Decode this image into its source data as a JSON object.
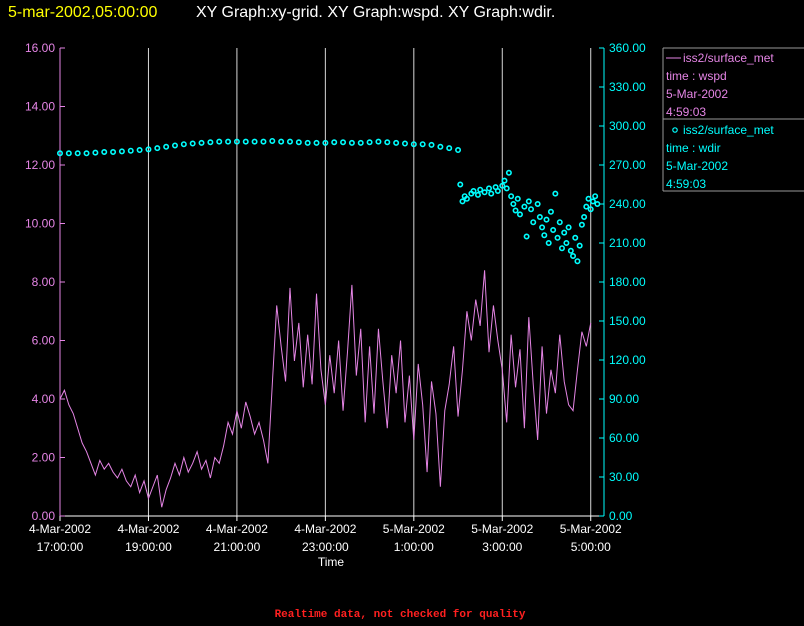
{
  "chart_data": {
    "type": "line-scatter",
    "title_time": "5-mar-2002,05:00:00",
    "title": "XY Graph:xy-grid.  XY Graph:wspd.  XY Graph:wdir.",
    "x_label": "Time",
    "footer": "Realtime data, not checked for quality",
    "xlim": [
      0,
      12.3
    ],
    "xticks": [
      {
        "value": 0,
        "label": "4-Mar-2002\n17:00:00"
      },
      {
        "value": 2,
        "label": "4-Mar-2002\n19:00:00"
      },
      {
        "value": 4,
        "label": "4-Mar-2002\n21:00:00"
      },
      {
        "value": 6,
        "label": "4-Mar-2002\n23:00:00"
      },
      {
        "value": 8,
        "label": "5-Mar-2002\n1:00:00"
      },
      {
        "value": 10,
        "label": "5-Mar-2002\n3:00:00"
      },
      {
        "value": 12,
        "label": "5-Mar-2002\n5:00:00"
      }
    ],
    "ylim": [
      0,
      16
    ],
    "yticks": [
      {
        "value": 0,
        "label": "0.00"
      },
      {
        "value": 2,
        "label": "2.00"
      },
      {
        "value": 4,
        "label": "4.00"
      },
      {
        "value": 6,
        "label": "6.00"
      },
      {
        "value": 8,
        "label": "8.00"
      },
      {
        "value": 10,
        "label": "10.00"
      },
      {
        "value": 12,
        "label": "12.00"
      },
      {
        "value": 14,
        "label": "14.00"
      },
      {
        "value": 16,
        "label": "16.00"
      }
    ],
    "y2lim": [
      0,
      360
    ],
    "y2ticks": [
      {
        "value": 0,
        "label": "0.00"
      },
      {
        "value": 30,
        "label": "30.00"
      },
      {
        "value": 60,
        "label": "60.00"
      },
      {
        "value": 90,
        "label": "90.00"
      },
      {
        "value": 120,
        "label": "120.00"
      },
      {
        "value": 150,
        "label": "150.00"
      },
      {
        "value": 180,
        "label": "180.00"
      },
      {
        "value": 210,
        "label": "210.00"
      },
      {
        "value": 240,
        "label": "240.00"
      },
      {
        "value": 270,
        "label": "270.00"
      },
      {
        "value": 300,
        "label": "300.00"
      },
      {
        "value": 330,
        "label": "330.00"
      },
      {
        "value": 360,
        "label": "360.00"
      }
    ],
    "grid": "vertical",
    "series": [
      {
        "name": "iss2/surface_met",
        "legend_text": [
          "time : wspd",
          "5-Mar-2002",
          "4:59:03"
        ],
        "color": "#e585e5",
        "axis": "y",
        "marker": "line",
        "x": [
          0,
          0.1,
          0.2,
          0.3,
          0.4,
          0.5,
          0.6,
          0.7,
          0.8,
          0.9,
          1,
          1.1,
          1.2,
          1.3,
          1.4,
          1.5,
          1.6,
          1.7,
          1.8,
          1.9,
          2,
          2.1,
          2.2,
          2.3,
          2.4,
          2.5,
          2.6,
          2.7,
          2.8,
          2.9,
          3,
          3.1,
          3.2,
          3.3,
          3.4,
          3.5,
          3.6,
          3.7,
          3.8,
          3.9,
          4,
          4.1,
          4.2,
          4.3,
          4.4,
          4.5,
          4.6,
          4.7,
          4.8,
          4.9,
          5,
          5.1,
          5.2,
          5.3,
          5.4,
          5.5,
          5.6,
          5.7,
          5.8,
          5.9,
          6,
          6.1,
          6.2,
          6.3,
          6.4,
          6.5,
          6.6,
          6.7,
          6.8,
          6.9,
          7,
          7.1,
          7.2,
          7.3,
          7.4,
          7.5,
          7.6,
          7.7,
          7.8,
          7.9,
          8,
          8.1,
          8.2,
          8.3,
          8.4,
          8.5,
          8.6,
          8.7,
          8.8,
          8.9,
          9,
          9.1,
          9.2,
          9.3,
          9.4,
          9.5,
          9.6,
          9.7,
          9.8,
          9.9,
          10,
          10.1,
          10.2,
          10.3,
          10.4,
          10.5,
          10.6,
          10.7,
          10.8,
          10.9,
          11,
          11.1,
          11.2,
          11.3,
          11.4,
          11.5,
          11.6,
          11.7,
          11.8,
          11.9,
          12
        ],
        "values": [
          4.0,
          4.3,
          3.8,
          3.5,
          3.0,
          2.5,
          2.2,
          1.8,
          1.4,
          1.9,
          1.6,
          1.8,
          1.5,
          1.3,
          1.6,
          1.2,
          1.0,
          1.4,
          0.8,
          1.2,
          0.6,
          1.0,
          1.4,
          0.3,
          0.9,
          1.3,
          1.8,
          1.4,
          2.0,
          1.5,
          1.8,
          2.2,
          1.6,
          1.9,
          1.3,
          2.0,
          1.8,
          2.4,
          3.2,
          2.8,
          3.6,
          3.0,
          3.9,
          3.4,
          2.8,
          3.2,
          2.6,
          1.8,
          4.5,
          7.2,
          5.8,
          4.6,
          7.8,
          5.3,
          6.6,
          4.4,
          6.2,
          4.5,
          7.6,
          5.0,
          3.8,
          5.5,
          4.2,
          6.0,
          3.6,
          5.6,
          7.9,
          4.8,
          6.4,
          3.2,
          5.8,
          3.5,
          6.4,
          4.6,
          3.0,
          5.5,
          4.2,
          6.0,
          3.2,
          4.8,
          2.6,
          5.2,
          3.8,
          1.5,
          4.6,
          3.5,
          1.0,
          3.6,
          4.5,
          5.8,
          3.4,
          5.0,
          7.0,
          6.0,
          7.4,
          6.5,
          8.4,
          5.6,
          7.2,
          6.0,
          5.0,
          3.2,
          6.2,
          4.4,
          5.7,
          3.0,
          6.8,
          4.5,
          2.6,
          5.8,
          3.5,
          5.0,
          4.2,
          6.2,
          4.6,
          3.8,
          3.6,
          5.0,
          6.3,
          5.8,
          6.6
        ]
      },
      {
        "name": "iss2/surface_met",
        "legend_text": [
          "time : wdir",
          "5-Mar-2002",
          "4:59:03"
        ],
        "color": "#00ffff",
        "axis": "y2",
        "marker": "circle",
        "x": [
          0,
          0.2,
          0.4,
          0.6,
          0.8,
          1,
          1.2,
          1.4,
          1.6,
          1.8,
          2,
          2.2,
          2.4,
          2.6,
          2.8,
          3,
          3.2,
          3.4,
          3.6,
          3.8,
          4,
          4.2,
          4.4,
          4.6,
          4.8,
          5,
          5.2,
          5.4,
          5.6,
          5.8,
          6,
          6.2,
          6.4,
          6.6,
          6.8,
          7,
          7.2,
          7.4,
          7.6,
          7.8,
          8,
          8.2,
          8.4,
          8.6,
          8.8,
          9,
          9.05,
          9.1,
          9.15,
          9.2,
          9.3,
          9.35,
          9.45,
          9.5,
          9.6,
          9.7,
          9.75,
          9.85,
          9.9,
          10,
          10.05,
          10.1,
          10.15,
          10.2,
          10.25,
          10.3,
          10.35,
          10.4,
          10.5,
          10.55,
          10.6,
          10.65,
          10.7,
          10.8,
          10.85,
          10.9,
          10.95,
          11,
          11.05,
          11.1,
          11.15,
          11.2,
          11.25,
          11.3,
          11.35,
          11.4,
          11.45,
          11.5,
          11.55,
          11.6,
          11.65,
          11.7,
          11.75,
          11.8,
          11.85,
          11.9,
          11.95,
          12,
          12.05,
          12.1,
          12.15
        ],
        "values": [
          279,
          279,
          279,
          279,
          279.5,
          280,
          280,
          280.5,
          281,
          281.5,
          282,
          283,
          284,
          285,
          286,
          286.5,
          287,
          287.5,
          288,
          288,
          288,
          288,
          288,
          288,
          288.5,
          288,
          288,
          287.5,
          287,
          287,
          287,
          287.5,
          287.5,
          287,
          287,
          287.5,
          288,
          287.5,
          287,
          286.5,
          286,
          286,
          285.5,
          284,
          283,
          281.5,
          255,
          242,
          246,
          244,
          248,
          250,
          247,
          251,
          249,
          252,
          248,
          253,
          250,
          254,
          258,
          252,
          264,
          246,
          240,
          235,
          244,
          232,
          238,
          215,
          242,
          236,
          226,
          240,
          230,
          222,
          216,
          228,
          210,
          234,
          220,
          248,
          214,
          226,
          206,
          218,
          210,
          222,
          204,
          200,
          214,
          196,
          208,
          224,
          230,
          238,
          244,
          236,
          242,
          246,
          240
        ]
      }
    ]
  }
}
